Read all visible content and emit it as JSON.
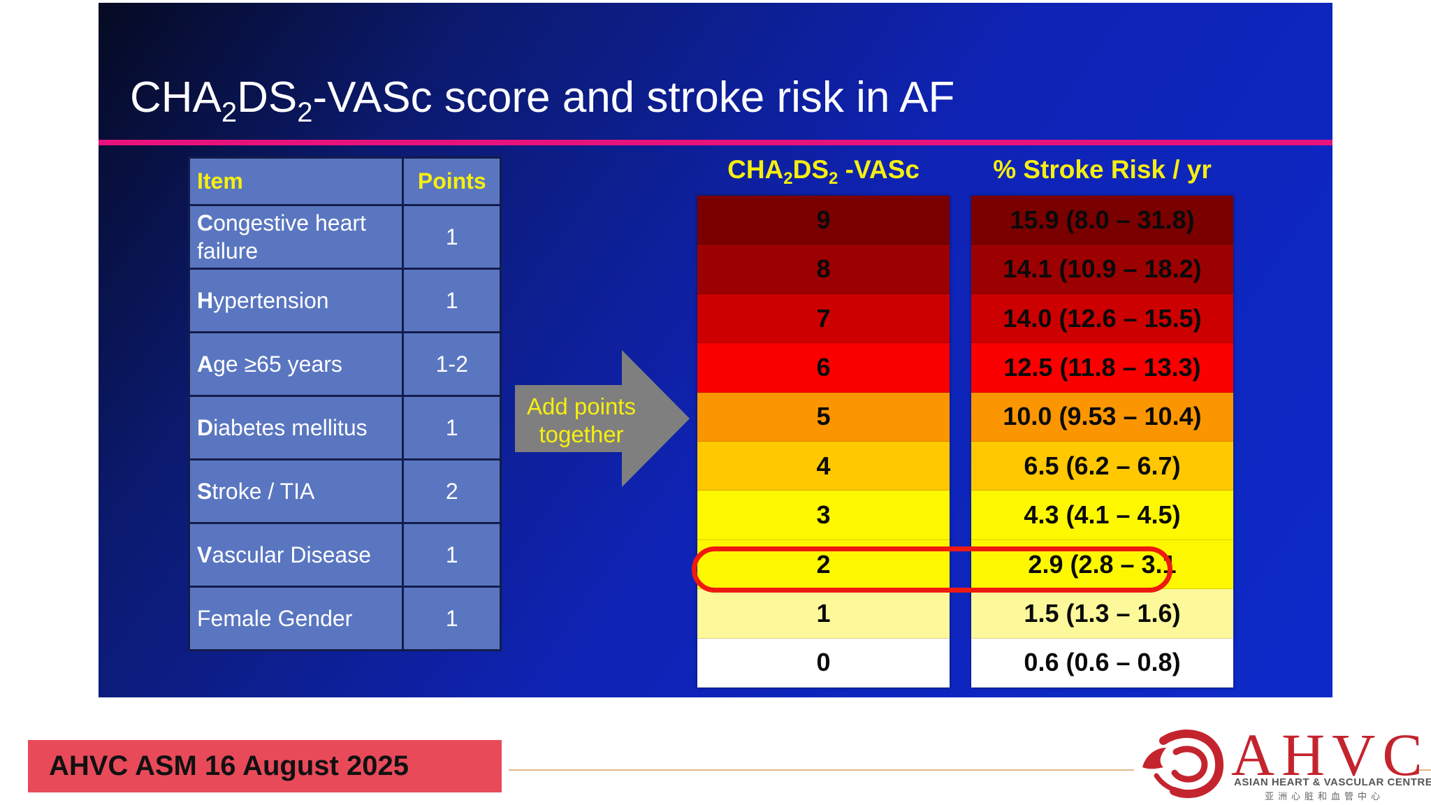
{
  "slide": {
    "title_parts": [
      "CHA",
      "2",
      "DS",
      "2",
      "-VASc score and stroke risk in AF"
    ]
  },
  "items_table": {
    "headers": [
      "Item",
      "Points"
    ],
    "rows": [
      {
        "first": "C",
        "rest": "ongestive heart failure",
        "points": "1"
      },
      {
        "first": "H",
        "rest": "ypertension",
        "points": "1"
      },
      {
        "first": "A",
        "rest": "ge  ≥65 years",
        "points": "1-2"
      },
      {
        "first": "D",
        "rest": "iabetes mellitus",
        "points": "1"
      },
      {
        "first": "S",
        "rest": "troke / TIA",
        "points": "2"
      },
      {
        "first": "V",
        "rest": "ascular Disease",
        "points": "1"
      },
      {
        "first": "",
        "rest": "Female Gender",
        "points": "1"
      }
    ]
  },
  "arrow": {
    "label": "Add points together"
  },
  "score_column": {
    "header_parts": [
      "CHA",
      "2",
      "DS",
      "2",
      " -VASc"
    ],
    "scores": [
      "9",
      "8",
      "7",
      "6",
      "5",
      "4",
      "3",
      "2",
      "1",
      "0"
    ]
  },
  "risk_column": {
    "header": "% Stroke Risk / yr",
    "risks": [
      "15.9 (8.0 – 31.8)",
      "14.1 (10.9 – 18.2)",
      "14.0 (12.6 – 15.5)",
      "12.5 (11.8 – 13.3)",
      "10.0 (9.53 – 10.4)",
      "6.5 (6.2 – 6.7)",
      "4.3 (4.1 – 4.5)",
      "2.9 (2.8 – 3.1",
      "1.5 (1.3 – 1.6)",
      "0.6 (0.6 – 0.8)"
    ]
  },
  "row_colors": [
    "#7a0000",
    "#9c0000",
    "#cc0000",
    "#fb0000",
    "#fb9600",
    "#ffc800",
    "#fdf700",
    "#fdf700",
    "#fdf89a",
    "#ffffff"
  ],
  "highlighted_score": "2",
  "colors": {
    "accent_pink": "#e8127c",
    "header_yellow": "#f6ef10",
    "highlight_red": "#ee1a10",
    "footer_red": "#e94a5a"
  },
  "footer": {
    "event": "AHVC ASM 16 August 2025",
    "logo": "AHVC",
    "logo_subtitle": "ASIAN HEART & VASCULAR CENTRE",
    "logo_chinese": "亚洲心脏和血管中心"
  }
}
